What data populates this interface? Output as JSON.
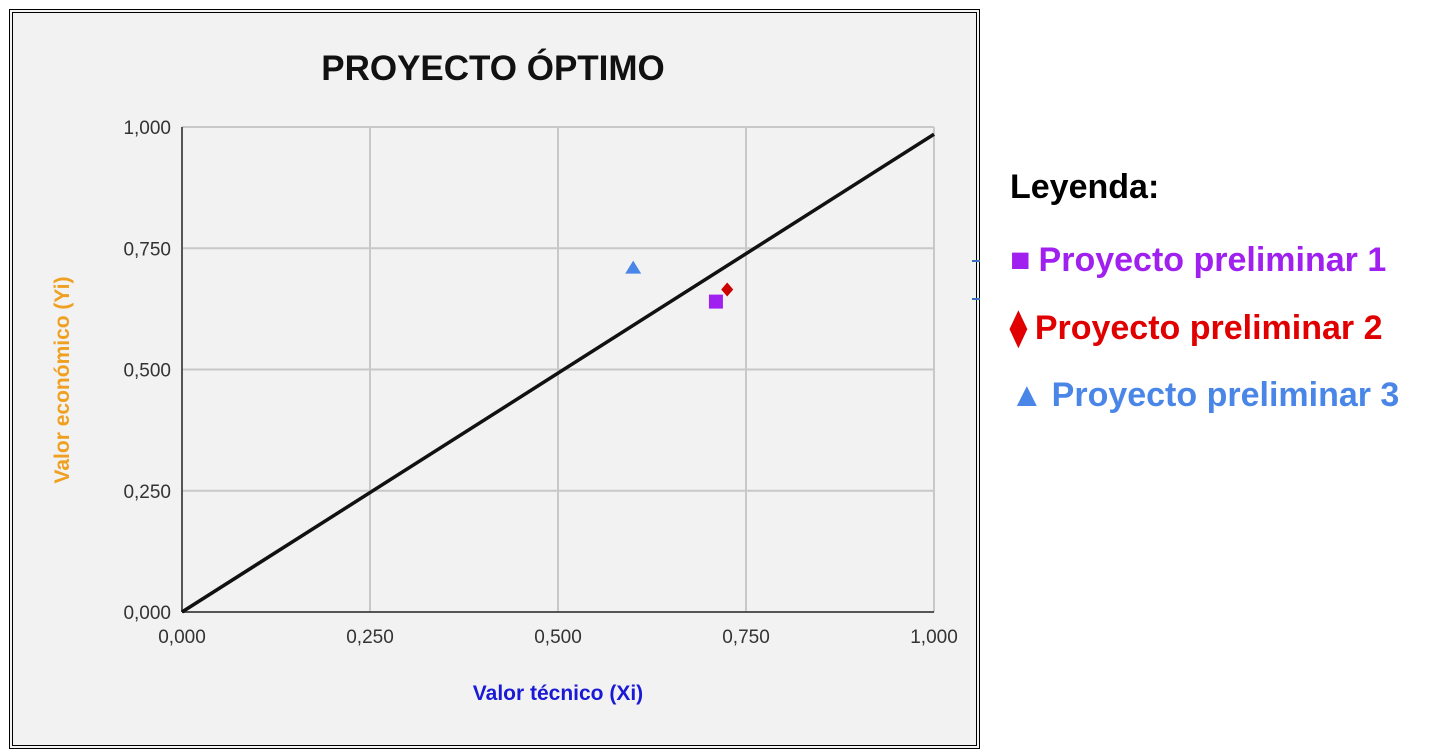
{
  "chart_data": {
    "type": "scatter",
    "title": "PROYECTO ÓPTIMO",
    "xlabel": "Valor técnico (Xi)",
    "ylabel": "Valor económico (Yi)",
    "xlim": [
      0,
      1
    ],
    "ylim": [
      0,
      1
    ],
    "x_ticks": [
      "0,000",
      "0,250",
      "0,500",
      "0,750",
      "1,000"
    ],
    "y_ticks": [
      "0,000",
      "0,250",
      "0,500",
      "0,750",
      "1,000"
    ],
    "grid": true,
    "reference_line": {
      "x": [
        0,
        1
      ],
      "y": [
        0,
        0.985
      ],
      "color": "#111111"
    },
    "series": [
      {
        "name": "Proyecto preliminar 1",
        "marker": "square",
        "color": "#a020f0",
        "points": [
          {
            "x": 0.71,
            "y": 0.64
          }
        ]
      },
      {
        "name": "Proyecto preliminar 2",
        "marker": "diamond",
        "color": "#cc0000",
        "points": [
          {
            "x": 0.725,
            "y": 0.665
          }
        ]
      },
      {
        "name": "Proyecto preliminar 3",
        "marker": "triangle",
        "color": "#4a86e8",
        "points": [
          {
            "x": 0.6,
            "y": 0.71
          }
        ]
      }
    ]
  },
  "legend": {
    "title": "Leyenda:",
    "items": [
      {
        "symbol": "■",
        "label": "Proyecto preliminar 1",
        "color": "#a020f0"
      },
      {
        "symbol": "⧫",
        "label": "Proyecto preliminar 2",
        "color": "#e00000"
      },
      {
        "symbol": "▲",
        "label": "Proyecto preliminar 3",
        "color": "#4a86e8"
      }
    ]
  }
}
